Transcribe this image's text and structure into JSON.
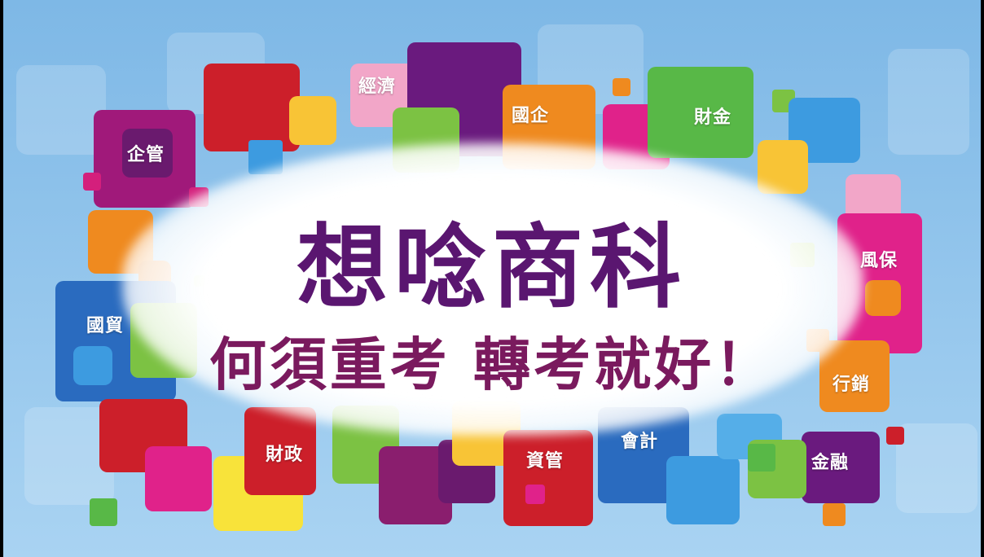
{
  "headline": {
    "line1": "想唸商科",
    "line2": "何須重考 轉考就好！"
  },
  "subjects": {
    "business_management": "企管",
    "economics": "經濟",
    "international_business": "國企",
    "finance_money": "財金",
    "risk_insurance": "風保",
    "marketing": "行銷",
    "finance": "金融",
    "accounting": "會計",
    "information_management": "資管",
    "public_finance": "財政",
    "international_trade": "國貿"
  },
  "colors": {
    "purple": "#5a1670",
    "magenta": "#d41f7c",
    "red": "#cc1f2a",
    "orange": "#ef8a1f",
    "yellow": "#f8c436",
    "green": "#7cc243",
    "blue": "#2a6bbf",
    "sky": "#3d9be0",
    "pink": "#f2a6c8"
  }
}
